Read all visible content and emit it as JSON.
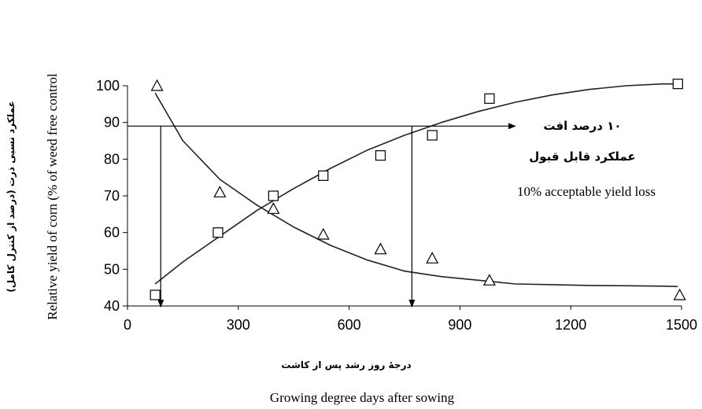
{
  "chart_data": {
    "type": "scatter",
    "xlabel": "Growing degree days after sowing",
    "xlabel_fa": "درجهٔ روز رشد پس از کاشت",
    "ylabel": "Relative yield of  corn  (% of weed free control",
    "ylabel_fa": "عملکرد نسبی ذرت  (درصد از کنترل کامل)",
    "xlim": [
      0,
      1500
    ],
    "ylim": [
      40,
      100
    ],
    "xticks": [
      0,
      300,
      600,
      900,
      1200,
      1500
    ],
    "yticks": [
      40,
      50,
      60,
      70,
      80,
      90,
      100
    ],
    "series": [
      {
        "marker": "square",
        "x": [
          75,
          245,
          395,
          530,
          685,
          825,
          980,
          1490
        ],
        "y": [
          43,
          60,
          70,
          75.5,
          81,
          86.5,
          96.5,
          100.5
        ]
      },
      {
        "marker": "triangle",
        "x": [
          80,
          250,
          395,
          530,
          685,
          825,
          980,
          1495
        ],
        "y": [
          100,
          71,
          66.5,
          59.5,
          55.5,
          53,
          47,
          43
        ]
      }
    ],
    "fitted_curves": [
      {
        "for": "square",
        "x": [
          75,
          150,
          250,
          350,
          450,
          550,
          650,
          750,
          850,
          950,
          1050,
          1150,
          1250,
          1350,
          1450,
          1490
        ],
        "y": [
          46,
          52,
          59,
          66,
          72,
          77.5,
          82.5,
          86.5,
          90,
          93,
          95.5,
          97.5,
          99,
          100,
          100.5,
          100.5
        ]
      },
      {
        "for": "triangle",
        "x": [
          75,
          150,
          250,
          350,
          450,
          550,
          650,
          750,
          850,
          950,
          1050,
          1150,
          1250,
          1350,
          1450,
          1490
        ],
        "y": [
          98,
          85,
          74.5,
          67.5,
          61.5,
          56.5,
          52.5,
          49.5,
          48,
          47,
          46,
          45.8,
          45.6,
          45.5,
          45.4,
          45.3
        ]
      }
    ],
    "threshold": {
      "y": 89,
      "x_start": 0,
      "x_end": 1050,
      "drop_x": [
        90,
        770
      ],
      "label_fa_line1": "۱۰ درصد افت",
      "label_fa_line2": "عملکرد قابل قبول",
      "label_en": "10% acceptable yield loss"
    },
    "grid": false
  }
}
